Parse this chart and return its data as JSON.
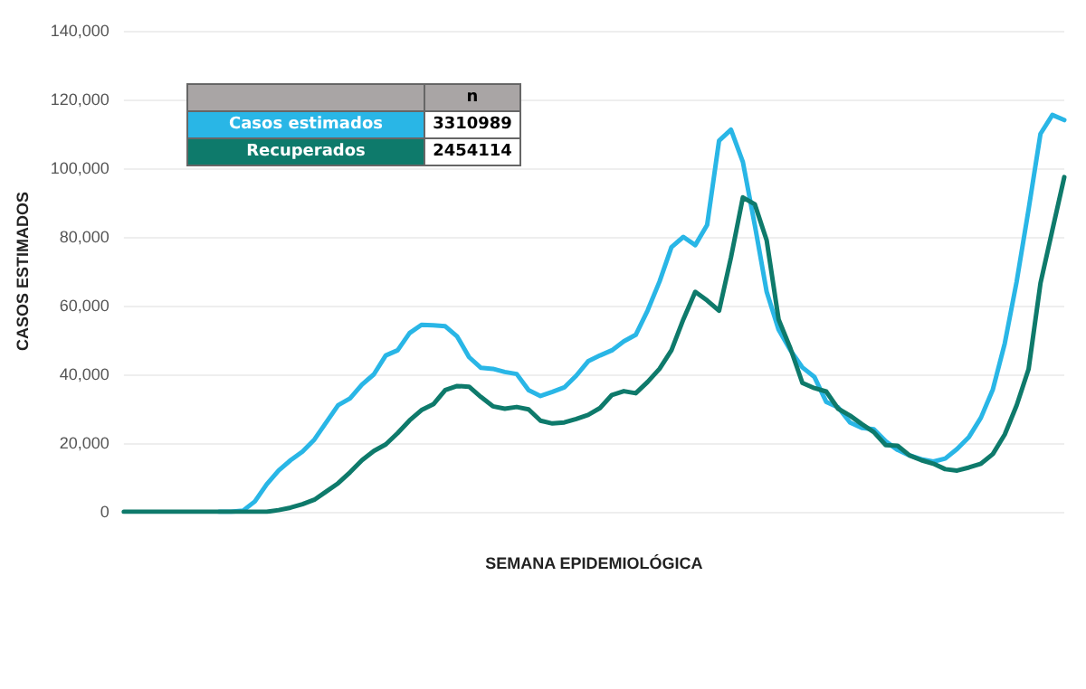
{
  "chart_data": {
    "type": "line",
    "xlabel": "SEMANA EPIDEMIOLÓGICA",
    "ylabel": "CASOS ESTIMADOS",
    "categories": [
      null,
      null,
      null,
      null,
      null,
      null,
      null,
      null,
      null,
      null,
      null,
      null,
      null,
      null,
      null,
      null,
      null,
      null,
      null,
      null,
      null,
      null,
      null,
      null,
      null,
      null,
      null,
      null,
      null,
      null,
      null,
      null,
      null,
      null,
      null,
      null,
      null,
      null,
      null,
      null,
      null,
      null,
      null,
      null,
      null,
      null,
      null,
      null,
      null,
      null,
      null,
      null,
      null,
      null,
      null,
      null,
      null,
      null,
      null,
      null,
      null,
      null,
      null,
      null,
      null,
      null,
      null,
      null,
      null,
      null,
      null,
      null,
      null,
      null,
      null,
      null,
      null,
      null,
      null,
      null
    ],
    "series": [
      {
        "name": "Casos estimados",
        "color": "#29b6e6",
        "values": [
          null,
          null,
          null,
          null,
          null,
          null,
          null,
          null,
          0,
          0,
          300,
          3000,
          8000,
          12000,
          15000,
          17500,
          21000,
          26000,
          31000,
          33000,
          37000,
          40000,
          45500,
          47000,
          52000,
          54400,
          54300,
          54000,
          51000,
          45000,
          41900,
          41600,
          40700,
          40100,
          35400,
          33700,
          34900,
          36200,
          39600,
          43800,
          45500,
          47000,
          49600,
          51500,
          58600,
          67000,
          77000,
          80000,
          77600,
          83500,
          108000,
          111200,
          101800,
          83500,
          64000,
          53000,
          47000,
          42000,
          39300,
          32000,
          30400,
          26000,
          24400,
          24000,
          20500,
          18000,
          16400,
          15300,
          14600,
          15500,
          18300,
          21800,
          27400,
          35600,
          49000,
          67000,
          88000,
          110000,
          115500,
          114000
        ]
      },
      {
        "name": "Recuperados",
        "color": "#0e7a6b",
        "values": [
          0,
          0,
          0,
          0,
          0,
          0,
          0,
          0,
          0,
          0,
          0,
          0,
          0,
          500,
          1200,
          2200,
          3500,
          5900,
          8300,
          11500,
          15000,
          17700,
          19600,
          22900,
          26600,
          29600,
          31300,
          35400,
          36600,
          36400,
          33400,
          30700,
          30000,
          30500,
          29800,
          26500,
          25700,
          26000,
          27000,
          28200,
          30200,
          34000,
          35100,
          34500,
          37800,
          41600,
          47000,
          56000,
          64000,
          61500,
          58500,
          74000,
          91500,
          89500,
          79000,
          56000,
          47500,
          37500,
          36000,
          35000,
          30000,
          28000,
          25500,
          23200,
          19400,
          19200,
          16400,
          15000,
          14000,
          12400,
          12000,
          12900,
          14000,
          16800,
          22500,
          31000,
          41500,
          66500,
          82000,
          97400
        ]
      }
    ],
    "ylim": [
      0,
      140000
    ],
    "yticks": [
      0,
      {
        "value": 20000,
        "label": "20,000"
      },
      {
        "value": 40000,
        "label": "40,000"
      },
      {
        "value": 60000,
        "label": "60,000"
      },
      {
        "value": 80000,
        "label": "80,000"
      },
      {
        "value": 100000,
        "label": "100,000"
      },
      {
        "value": 120000,
        "label": "120,000"
      },
      {
        "value": 140000,
        "label": "140,000"
      }
    ],
    "grid": "y",
    "legend": "top left",
    "tick_labels": "y",
    "line_style": "solid",
    "annotations": [
      "n",
      "3310989",
      "2454114"
    ]
  }
}
